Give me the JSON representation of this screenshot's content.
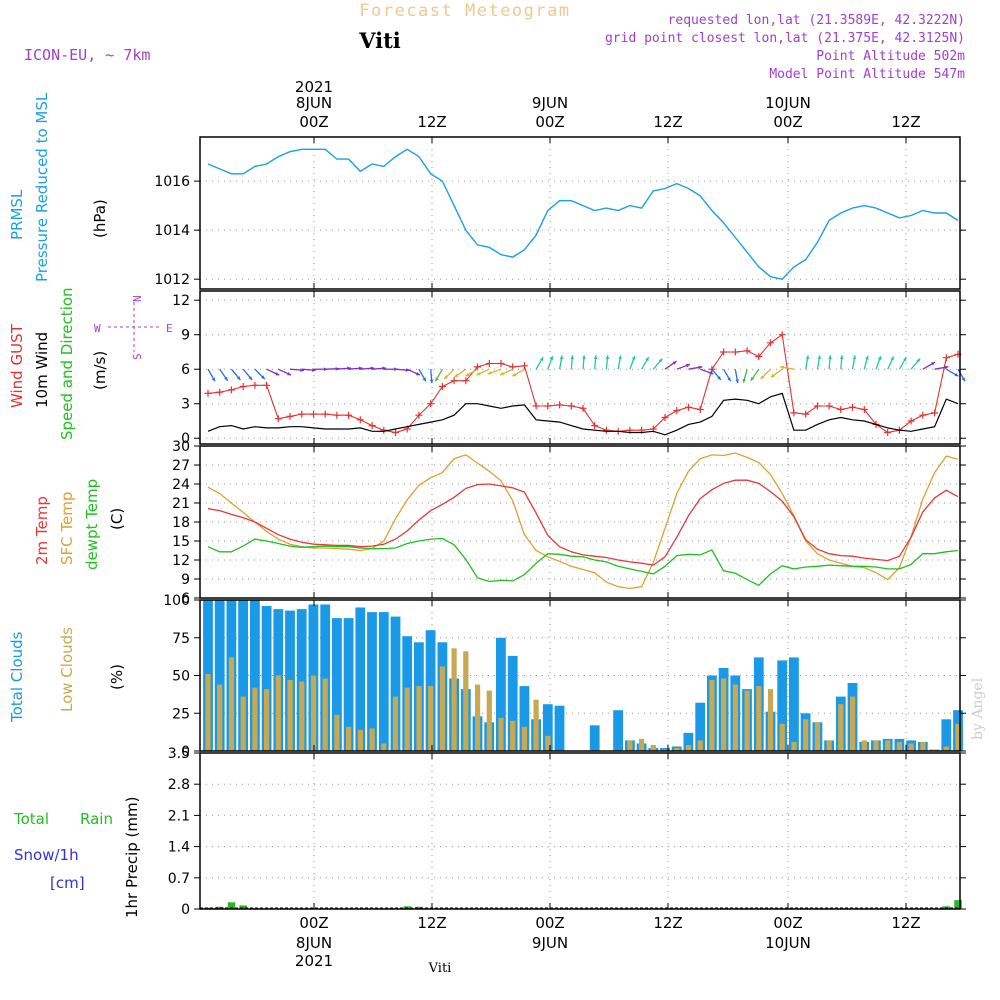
{
  "title": "Forecast Meteogram",
  "location": "Viti",
  "model": "ICON-EU, ~ 7km",
  "requested_point": "requested lon,lat (21.3589E, 42.3222N)",
  "grid_point": "grid point closest lon,lat (21.375E, 42.3125N)",
  "point_altitude": "Point Altitude 502m",
  "model_altitude": "Model Point Altitude 547m",
  "footer_location": "Viti",
  "credit": "by Angel",
  "time_axis": {
    "year": "2021",
    "top_days": [
      "8JUN",
      "9JUN",
      "10JUN"
    ],
    "top_labels": [
      "00Z",
      "12Z",
      "00Z",
      "12Z",
      "00Z",
      "12Z"
    ],
    "bottom_labels": [
      "00Z",
      "12Z",
      "00Z",
      "12Z",
      "00Z",
      "12Z"
    ],
    "bottom_days": [
      "8JUN",
      "9JUN",
      "10JUN"
    ],
    "bottom_year": "2021",
    "start": "2021-06-07 18Z",
    "step_hours": 1,
    "points": 65
  },
  "legend": {
    "pressure_a": "PRMSL",
    "pressure_b": "Pressure Reduced to MSL",
    "pressure_unit": "(hPa)",
    "wind_gust": "Wind GUST",
    "wind_10m": "10m Wind",
    "wind_speed_dir": "Speed and Direction",
    "wind_unit": "(m/s)",
    "compass_n": "N",
    "compass_s": "S",
    "compass_w": "W",
    "compass_e": "E",
    "temp_2m": "2m Temp",
    "temp_sfc": "SFC Temp",
    "temp_dew": "dewpt Temp",
    "temp_unit": "(C)",
    "total_clouds": "Total Clouds",
    "low_clouds": "Low Clouds",
    "cloud_unit": "(%)",
    "total_rain_a": "Total",
    "total_rain_b": "Rain",
    "snow": "Snow/1h",
    "snow_unit": "[cm]",
    "precip_axis": "1hr Precip (mm)"
  },
  "colors": {
    "pressure": "#1aa0e8",
    "gust": "#e83030",
    "wind10m": "#000000",
    "temp2m": "#e83838",
    "sfc": "#e0a030",
    "dew": "#20c020",
    "total_cloud": "#1a9ae6",
    "low_cloud": "#c8a850",
    "rain": "#28b828",
    "snow": "#3030e0",
    "title": "#f0c890",
    "meta": "#a040d0",
    "grid": "#9a9a9a"
  },
  "chart_data": [
    {
      "type": "line",
      "title": "PRMSL Pressure Reduced to MSL",
      "ylabel": "(hPa)",
      "ylim": [
        1011.6,
        1017.8
      ],
      "yticks": [
        1012,
        1014,
        1016
      ],
      "series": [
        {
          "name": "PRMSL",
          "values": [
            1016.7,
            1016.5,
            1016.3,
            1016.3,
            1016.6,
            1016.7,
            1017.0,
            1017.2,
            1017.3,
            1017.3,
            1017.3,
            1016.9,
            1016.9,
            1016.4,
            1016.7,
            1016.6,
            1017.0,
            1017.3,
            1017.0,
            1016.3,
            1016.0,
            1015.0,
            1014.0,
            1013.4,
            1013.3,
            1013.0,
            1012.9,
            1013.2,
            1013.8,
            1014.8,
            1015.2,
            1015.2,
            1015.0,
            1014.8,
            1014.9,
            1014.8,
            1015.0,
            1014.9,
            1015.6,
            1015.7,
            1015.9,
            1015.7,
            1015.4,
            1014.8,
            1014.3,
            1013.7,
            1013.1,
            1012.5,
            1012.1,
            1012.0,
            1012.5,
            1012.8,
            1013.5,
            1014.4,
            1014.7,
            1014.9,
            1015.0,
            1014.9,
            1014.7,
            1014.5,
            1014.6,
            1014.8,
            1014.7,
            1014.7,
            1014.4
          ]
        }
      ]
    },
    {
      "type": "line",
      "title": "Wind GUST / 10m Wind Speed and Direction",
      "ylabel": "(m/s)",
      "ylim": [
        -0.5,
        12.8
      ],
      "yticks": [
        0,
        3,
        6,
        9,
        12
      ],
      "series": [
        {
          "name": "Wind GUST",
          "values": [
            3.9,
            4.0,
            4.2,
            4.5,
            4.6,
            4.6,
            1.7,
            1.9,
            2.1,
            2.1,
            2.1,
            2.0,
            2.0,
            1.6,
            1.1,
            0.7,
            0.5,
            0.8,
            2.0,
            3.0,
            4.5,
            5.0,
            5.0,
            6.2,
            6.5,
            6.5,
            6.2,
            6.3,
            2.8,
            2.8,
            2.9,
            2.8,
            2.6,
            1.1,
            0.7,
            0.6,
            0.7,
            0.7,
            0.8,
            1.8,
            2.4,
            2.7,
            2.5,
            6.0,
            7.5,
            7.5,
            7.6,
            7.1,
            8.3,
            9.0,
            2.2,
            2.1,
            2.8,
            2.8,
            2.5,
            2.7,
            2.5,
            1.2,
            0.5,
            0.7,
            1.5,
            2.0,
            2.2,
            7.0,
            7.3
          ]
        },
        {
          "name": "10m Wind",
          "values": [
            0.6,
            1.0,
            1.1,
            0.8,
            1.0,
            0.9,
            0.9,
            1.0,
            1.0,
            0.9,
            0.8,
            0.8,
            0.8,
            0.9,
            0.6,
            0.6,
            0.8,
            1.0,
            1.2,
            1.4,
            1.6,
            2.0,
            3.0,
            3.0,
            2.8,
            2.6,
            2.8,
            2.9,
            1.6,
            1.5,
            1.4,
            1.1,
            0.8,
            0.7,
            0.6,
            0.6,
            0.5,
            0.5,
            0.6,
            0.3,
            0.7,
            1.2,
            1.4,
            1.9,
            3.3,
            3.4,
            3.3,
            3.0,
            3.6,
            3.9,
            0.7,
            0.7,
            1.2,
            1.6,
            1.8,
            1.6,
            1.5,
            1.2,
            0.9,
            0.7,
            0.6,
            0.8,
            1.0,
            3.4,
            3.0
          ]
        }
      ],
      "arrows": {
        "name": "10m Wind Direction (deg, direction wind blows toward)",
        "values": [
          150,
          145,
          140,
          140,
          135,
          115,
          115,
          95,
          95,
          90,
          88,
          85,
          85,
          85,
          85,
          90,
          95,
          115,
          150,
          175,
          210,
          225,
          235,
          240,
          245,
          250,
          245,
          240,
          30,
          20,
          10,
          5,
          5,
          5,
          5,
          10,
          20,
          30,
          40,
          55,
          70,
          80,
          110,
          140,
          150,
          170,
          195,
          215,
          225,
          235,
          280,
          10,
          10,
          5,
          5,
          10,
          15,
          20,
          25,
          30,
          40,
          60,
          80,
          120,
          150
        ]
      }
    },
    {
      "type": "line",
      "title": "Temperatures",
      "ylabel": "(C)",
      "ylim": [
        6,
        30
      ],
      "yticks": [
        6,
        9,
        12,
        15,
        18,
        21,
        24,
        27,
        30
      ],
      "series": [
        {
          "name": "2m Temp",
          "values": [
            20.1,
            19.8,
            19.2,
            18.7,
            18.0,
            17.0,
            16.0,
            15.3,
            14.8,
            14.5,
            14.4,
            14.3,
            14.3,
            14.1,
            14.2,
            14.5,
            15.3,
            16.6,
            18.3,
            19.8,
            20.8,
            21.9,
            23.3,
            23.9,
            24.0,
            23.7,
            23.4,
            22.7,
            19.4,
            15.9,
            14.1,
            13.3,
            12.8,
            12.6,
            12.4,
            12.0,
            11.7,
            11.5,
            11.2,
            12.5,
            15.6,
            19.0,
            21.7,
            23.1,
            24.1,
            24.6,
            24.6,
            24.1,
            22.8,
            21.3,
            18.8,
            15.2,
            13.7,
            13.0,
            12.7,
            12.6,
            12.3,
            12.1,
            11.9,
            12.6,
            15.6,
            19.6,
            21.8,
            23.0,
            22.0
          ]
        },
        {
          "name": "SFC Temp",
          "values": [
            23.5,
            22.5,
            21.0,
            19.5,
            18.0,
            16.5,
            15.3,
            14.5,
            14.1,
            13.9,
            13.9,
            13.8,
            13.7,
            13.5,
            13.8,
            15.0,
            18.5,
            21.5,
            23.8,
            25.0,
            25.8,
            28.0,
            28.6,
            27.3,
            26.0,
            24.5,
            21.4,
            16.0,
            13.5,
            12.5,
            11.8,
            11.0,
            10.5,
            10.0,
            8.5,
            7.8,
            7.5,
            7.8,
            11.6,
            17.0,
            22.5,
            26.0,
            28.0,
            28.6,
            28.5,
            28.9,
            28.2,
            27.4,
            25.5,
            22.5,
            19.0,
            15.0,
            13.0,
            12.0,
            11.5,
            11.0,
            10.8,
            10.0,
            8.9,
            10.8,
            15.7,
            21.6,
            25.8,
            28.4,
            27.9
          ]
        },
        {
          "name": "dewpt Temp",
          "values": [
            14.1,
            13.3,
            13.3,
            14.2,
            15.3,
            15.0,
            14.6,
            14.2,
            14.0,
            14.1,
            14.2,
            14.1,
            14.1,
            13.9,
            13.8,
            13.8,
            13.9,
            14.6,
            15.0,
            15.3,
            15.4,
            14.4,
            12.1,
            9.2,
            8.6,
            8.8,
            8.7,
            9.7,
            11.5,
            13.0,
            12.9,
            12.6,
            12.5,
            12.0,
            11.7,
            11.0,
            10.6,
            10.2,
            9.8,
            11.0,
            12.7,
            12.9,
            12.8,
            13.6,
            10.3,
            9.9,
            8.9,
            8.0,
            9.8,
            11.1,
            10.6,
            10.9,
            11.0,
            11.2,
            11.1,
            11.0,
            11.0,
            10.9,
            10.6,
            10.6,
            11.3,
            13.0,
            13.0,
            13.3,
            13.5
          ]
        }
      ]
    },
    {
      "type": "bar",
      "title": "Clouds",
      "ylabel": "(%)",
      "ylim": [
        0,
        100
      ],
      "yticks": [
        0,
        25,
        50,
        75,
        100
      ],
      "series": [
        {
          "name": "Total Clouds",
          "values": [
            100,
            100,
            100,
            100,
            100,
            96,
            94,
            93,
            94,
            97,
            97,
            88,
            88,
            95,
            92,
            92,
            89,
            76,
            72,
            80,
            72,
            48,
            41,
            23,
            19,
            75,
            63,
            43,
            21,
            31,
            30,
            0,
            0,
            17,
            0,
            27,
            7,
            5,
            2,
            2,
            3,
            12,
            32,
            50,
            55,
            50,
            41,
            62,
            26,
            60,
            62,
            25,
            19,
            7,
            36,
            45,
            6,
            7,
            8,
            8,
            7,
            6,
            1,
            21,
            27
          ]
        },
        {
          "name": "Low Clouds",
          "values": [
            51,
            44,
            62,
            36,
            42,
            41,
            50,
            47,
            46,
            50,
            48,
            24,
            16,
            14,
            15,
            5,
            36,
            42,
            43,
            43,
            56,
            68,
            66,
            44,
            40,
            22,
            20,
            16,
            34,
            10,
            0,
            0,
            0,
            0,
            0,
            0,
            7,
            8,
            4,
            1,
            2,
            4,
            7,
            47,
            48,
            44,
            40,
            43,
            41,
            18,
            6,
            21,
            19,
            7,
            31,
            36,
            7,
            7,
            7,
            6,
            5,
            6,
            1,
            3,
            18
          ]
        }
      ]
    },
    {
      "type": "bar",
      "title": "1hr Precip",
      "ylabel": "1hr Precip (mm)",
      "ylim": [
        0,
        3.5
      ],
      "yticks": [
        0,
        0.7,
        1.4,
        2.1,
        2.8,
        3.5
      ],
      "series": [
        {
          "name": "Total Rain",
          "values": [
            0.03,
            0.05,
            0.15,
            0.08,
            0,
            0,
            0,
            0,
            0,
            0,
            0,
            0,
            0,
            0,
            0,
            0,
            0,
            0.06,
            0.05,
            0,
            0,
            0,
            0,
            0,
            0,
            0,
            0,
            0,
            0,
            0,
            0,
            0,
            0,
            0,
            0,
            0,
            0,
            0,
            0,
            0,
            0,
            0,
            0,
            0,
            0,
            0,
            0,
            0,
            0,
            0,
            0,
            0,
            0,
            0,
            0,
            0,
            0,
            0,
            0,
            0,
            0,
            0,
            0,
            0.06,
            0.2
          ]
        }
      ]
    }
  ]
}
